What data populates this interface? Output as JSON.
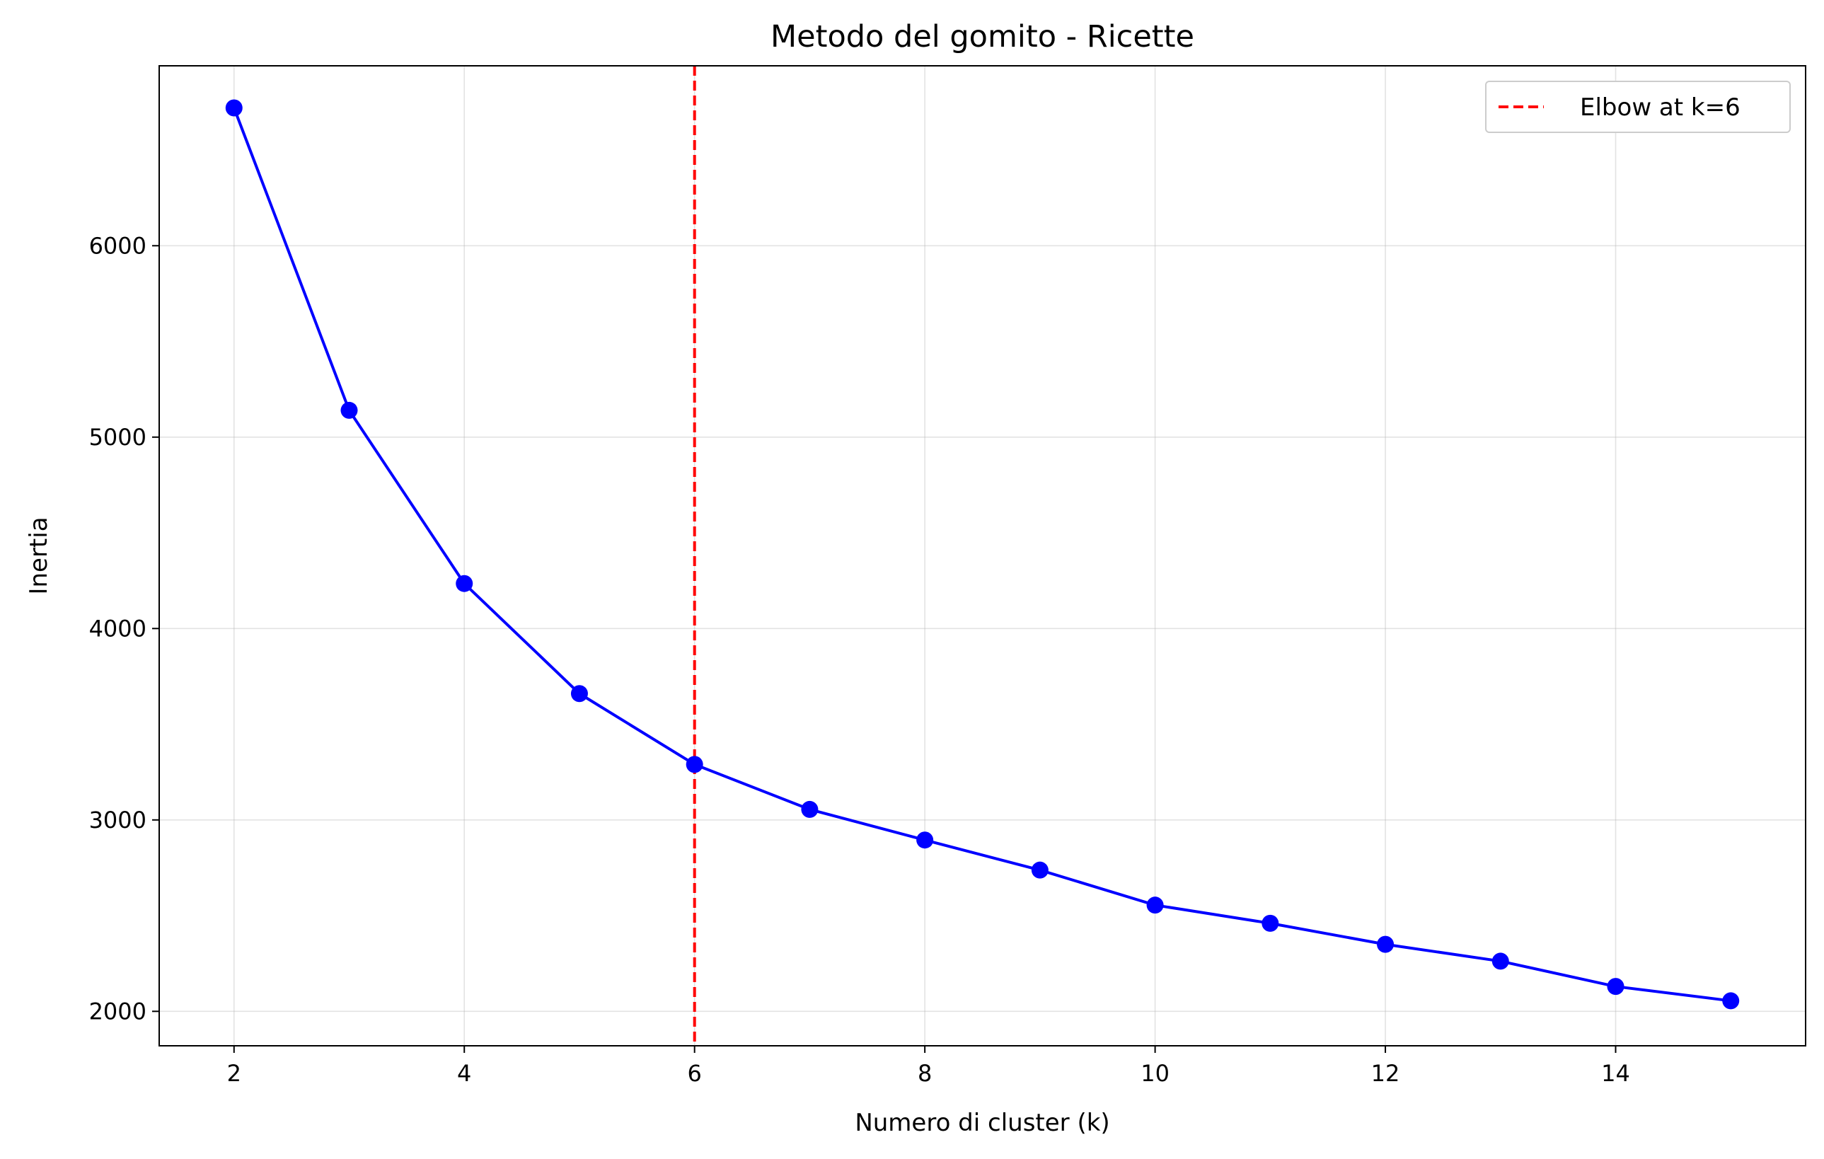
{
  "chart_data": {
    "type": "line",
    "title": "Metodo del gomito - Ricette",
    "xlabel": "Numero di cluster (k)",
    "ylabel": "Inertia",
    "x": [
      2,
      3,
      4,
      5,
      6,
      7,
      8,
      9,
      10,
      11,
      12,
      13,
      14,
      15
    ],
    "series": [
      {
        "name": "",
        "color": "#0000ff",
        "marker": "circle",
        "values": [
          6720,
          5140,
          4235,
          3660,
          3290,
          3055,
          2895,
          2738,
          2555,
          2460,
          2350,
          2262,
          2130,
          2055
        ]
      }
    ],
    "reference_line": {
      "orientation": "vertical",
      "x": 6,
      "style": "dashed",
      "color": "#ff0000",
      "label": "Elbow at k=6"
    },
    "xlim": [
      1.35,
      15.65
    ],
    "ylim": [
      1820,
      6940
    ],
    "xticks": [
      2,
      4,
      6,
      8,
      10,
      12,
      14
    ],
    "yticks": [
      2000,
      3000,
      4000,
      5000,
      6000
    ],
    "grid": true,
    "legend": {
      "position": "top-right",
      "entries": [
        "Elbow at k=6"
      ]
    }
  }
}
